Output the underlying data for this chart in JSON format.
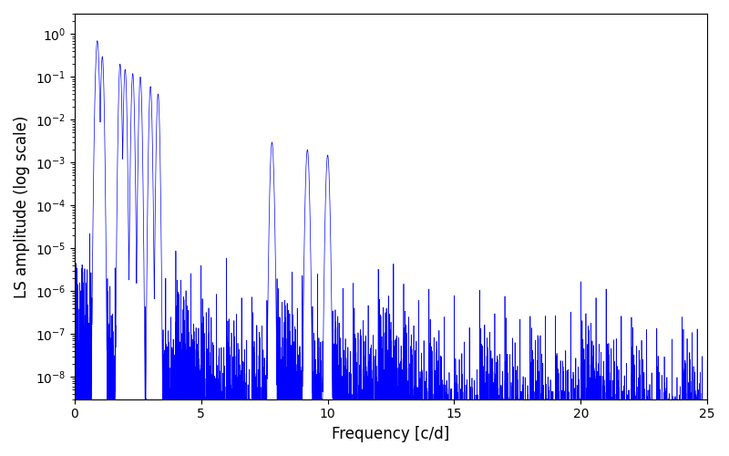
{
  "title": "",
  "xlabel": "Frequency [c/d]",
  "ylabel": "LS amplitude (log scale)",
  "xlim": [
    0,
    25
  ],
  "ylim": [
    3e-09,
    3.0
  ],
  "line_color": "#0000ff",
  "line_width": 0.5,
  "yscale": "log",
  "background_color": "#ffffff",
  "freq_min": 0.001,
  "freq_max": 25.0,
  "n_points": 15000,
  "seed": 12345
}
